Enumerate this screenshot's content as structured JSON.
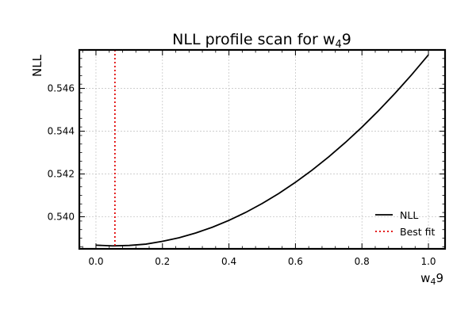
{
  "chart_data": {
    "type": "line",
    "title": "NLL profile scan for w",
    "title_sub": "4",
    "title_suffix": "9",
    "xlabel": "w",
    "xlabel_sub": "4",
    "xlabel_suffix": "9",
    "ylabel": "NLL",
    "xlim": [
      -0.05,
      1.05
    ],
    "ylim": [
      0.5385,
      0.5478
    ],
    "xticks": [
      0.0,
      0.2,
      0.4,
      0.6,
      0.8,
      1.0
    ],
    "xtick_labels": [
      "0.0",
      "0.2",
      "0.4",
      "0.6",
      "0.8",
      "1.0"
    ],
    "yticks": [
      0.54,
      0.542,
      0.544,
      0.546
    ],
    "ytick_labels": [
      "0.540",
      "0.542",
      "0.544",
      "0.546"
    ],
    "grid": true,
    "legend_position": "lower-right",
    "series": [
      {
        "name": "NLL",
        "style": "solid",
        "color": "#000000",
        "x": [
          0.0,
          0.05,
          0.1,
          0.15,
          0.2,
          0.25,
          0.3,
          0.35,
          0.4,
          0.45,
          0.5,
          0.55,
          0.6,
          0.65,
          0.7,
          0.75,
          0.8,
          0.85,
          0.9,
          0.95,
          1.0
        ],
        "y": [
          0.53867,
          0.53864,
          0.53866,
          0.53872,
          0.53885,
          0.53902,
          0.53924,
          0.53951,
          0.53983,
          0.5402,
          0.54062,
          0.54109,
          0.54161,
          0.54218,
          0.5428,
          0.54347,
          0.54419,
          0.54496,
          0.54578,
          0.54665,
          0.54757
        ]
      },
      {
        "name": "Best fit",
        "style": "dotted",
        "color": "#e00000",
        "vline_x": 0.057
      }
    ]
  }
}
